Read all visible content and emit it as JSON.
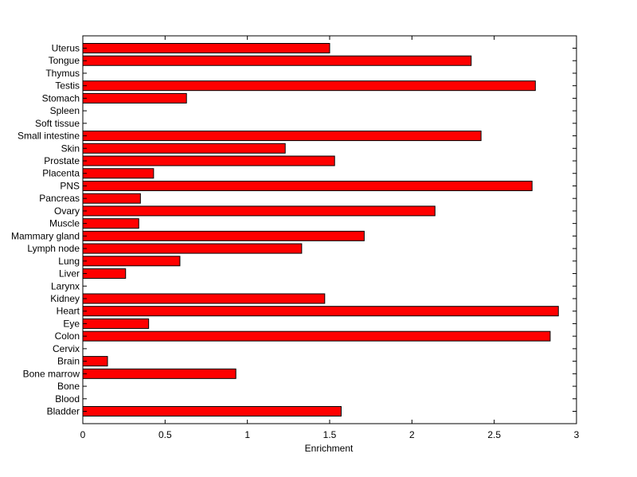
{
  "chart_data": {
    "type": "bar",
    "orientation": "horizontal",
    "title": "",
    "xlabel": "Enrichment",
    "ylabel": "",
    "xlim": [
      0,
      3
    ],
    "xticks": [
      "0",
      "0.5",
      "1",
      "1.5",
      "2",
      "2.5",
      "3"
    ],
    "grid": false,
    "legend": "none",
    "bar_color": "#ff0000",
    "categories": [
      "Uterus",
      "Tongue",
      "Thymus",
      "Testis",
      "Stomach",
      "Spleen",
      "Soft tissue",
      "Small intestine",
      "Skin",
      "Prostate",
      "Placenta",
      "PNS",
      "Pancreas",
      "Ovary",
      "Muscle",
      "Mammary gland",
      "Lymph node",
      "Lung",
      "Liver",
      "Larynx",
      "Kidney",
      "Heart",
      "Eye",
      "Colon",
      "Cervix",
      "Brain",
      "Bone marrow",
      "Bone",
      "Blood",
      "Bladder"
    ],
    "values": [
      1.5,
      2.36,
      0,
      2.75,
      0.63,
      0,
      0,
      2.42,
      1.23,
      1.53,
      0.43,
      2.73,
      0.35,
      2.14,
      0.34,
      1.71,
      1.33,
      0.59,
      0.26,
      0,
      1.47,
      2.89,
      0.4,
      2.84,
      0,
      0.15,
      0.93,
      0,
      0,
      1.57
    ]
  }
}
